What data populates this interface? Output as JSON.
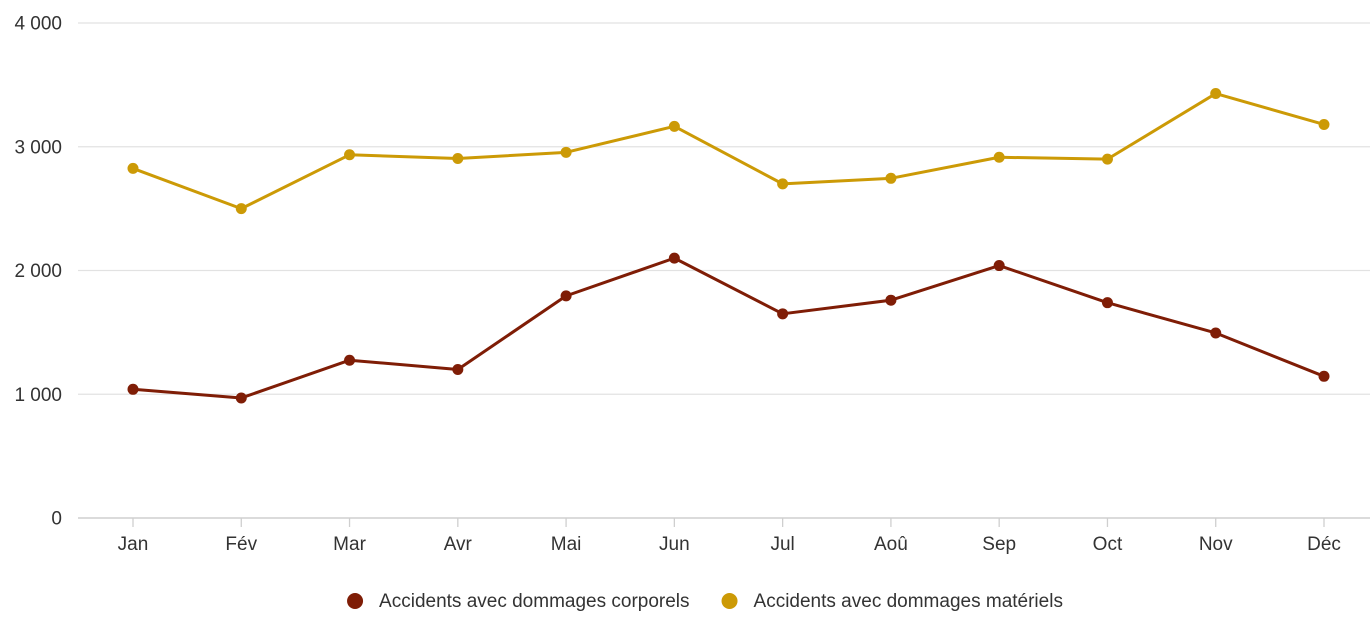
{
  "chart_data": {
    "type": "line",
    "categories": [
      "Jan",
      "Fév",
      "Mar",
      "Avr",
      "Mai",
      "Jun",
      "Jul",
      "Aoû",
      "Sep",
      "Oct",
      "Nov",
      "Déc"
    ],
    "series": [
      {
        "name": "Accidents avec dommages corporels",
        "color": "#7f1d06",
        "values": [
          1040,
          970,
          1275,
          1200,
          1795,
          2100,
          1650,
          1760,
          2040,
          1740,
          1495,
          1145
        ]
      },
      {
        "name": "Accidents avec dommages matériels",
        "color": "#cc9a06",
        "values": [
          2825,
          2500,
          2935,
          2905,
          2955,
          3165,
          2700,
          2745,
          2915,
          2900,
          3430,
          3180
        ]
      }
    ],
    "yticks": [
      {
        "value": 0,
        "label": "0"
      },
      {
        "value": 1000,
        "label": "1 000"
      },
      {
        "value": 2000,
        "label": "2 000"
      },
      {
        "value": 3000,
        "label": "3 000"
      },
      {
        "value": 4000,
        "label": "4 000"
      }
    ],
    "ylim": [
      0,
      4000
    ],
    "grid": true,
    "legend_position": "bottom"
  }
}
